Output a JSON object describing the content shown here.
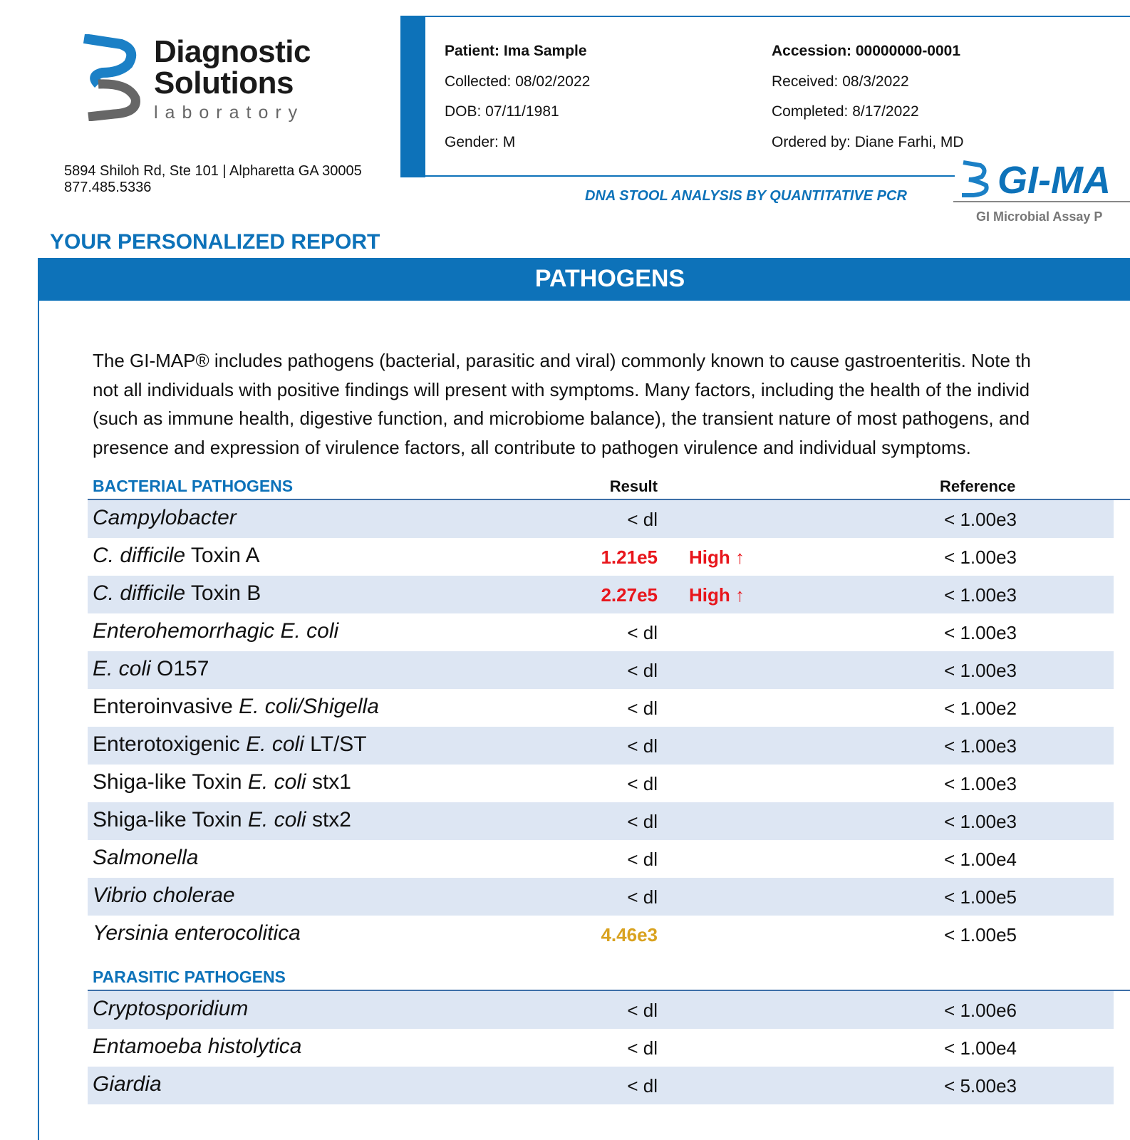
{
  "logo": {
    "line1": "Diagnostic",
    "line2": "Solutions",
    "line3": "laboratory"
  },
  "address": [
    "5894 Shiloh Rd, Ste 101 | Alpharetta GA 30005",
    "877.485.5336"
  ],
  "patient": {
    "left": [
      "Patient: Ima Sample",
      "Collected: 08/02/2022",
      "DOB: 07/11/1981",
      "Gender: M"
    ],
    "right": [
      "Accession: 00000000-0001",
      "Received: 08/3/2022",
      "Completed: 8/17/2022",
      "Ordered by: Diane Farhi, MD"
    ]
  },
  "subtitle": "DNA STOOL ANALYSIS BY QUANTITATIVE PCR",
  "brand": {
    "name": "GI-MA",
    "tagline": "GI Microbial Assay P"
  },
  "report_title": "YOUR PERSONALIZED REPORT",
  "section_title": "PATHOGENS",
  "intro": [
    "The GI-MAP® includes pathogens (bacterial, parasitic and viral) commonly known to cause gastroenteritis. Note th",
    "not all individuals with positive findings will present with symptoms. Many factors, including the health of the individ",
    "(such as immune health, digestive function, and microbiome balance), the transient nature of most pathogens, and",
    "presence and expression of virulence factors, all contribute to pathogen virulence and individual symptoms."
  ],
  "tables": [
    {
      "title": "BACTERIAL PATHOGENS",
      "result_header": "Result",
      "reference_header": "Reference",
      "rows": [
        {
          "name": [
            {
              "text": "Campylobacter",
              "italic": true
            }
          ],
          "result": "< dl",
          "reference": "< 1.00e3"
        },
        {
          "name": [
            {
              "text": "C. difficile",
              "italic": true
            },
            {
              "text": " Toxin A"
            }
          ],
          "result": "1.21e5",
          "result_color": "#e8161c",
          "flag": "High ↑",
          "reference": "< 1.00e3"
        },
        {
          "name": [
            {
              "text": "C. difficile",
              "italic": true
            },
            {
              "text": " Toxin B"
            }
          ],
          "result": "2.27e5",
          "result_color": "#e8161c",
          "flag": "High ↑",
          "reference": "< 1.00e3"
        },
        {
          "name": [
            {
              "text": "Enterohemorrhagic E. coli",
              "italic": true
            }
          ],
          "result": "< dl",
          "reference": "< 1.00e3"
        },
        {
          "name": [
            {
              "text": "E. coli",
              "italic": true
            },
            {
              "text": " O157"
            }
          ],
          "result": "< dl",
          "reference": "< 1.00e3"
        },
        {
          "name": [
            {
              "text": "Enteroinvasive "
            },
            {
              "text": "E. coli/Shigella",
              "italic": true
            }
          ],
          "result": "< dl",
          "reference": "< 1.00e2"
        },
        {
          "name": [
            {
              "text": "Enterotoxigenic "
            },
            {
              "text": "E. coli",
              "italic": true
            },
            {
              "text": " LT/ST"
            }
          ],
          "result": "< dl",
          "reference": "< 1.00e3"
        },
        {
          "name": [
            {
              "text": "Shiga-like Toxin "
            },
            {
              "text": "E. coli",
              "italic": true
            },
            {
              "text": " stx1"
            }
          ],
          "result": "< dl",
          "reference": "< 1.00e3"
        },
        {
          "name": [
            {
              "text": "Shiga-like Toxin "
            },
            {
              "text": "E. coli",
              "italic": true
            },
            {
              "text": " stx2"
            }
          ],
          "result": "< dl",
          "reference": "< 1.00e3"
        },
        {
          "name": [
            {
              "text": "Salmonella",
              "italic": true
            }
          ],
          "result": "< dl",
          "reference": "< 1.00e4"
        },
        {
          "name": [
            {
              "text": "Vibrio cholerae",
              "italic": true
            }
          ],
          "result": "< dl",
          "reference": "< 1.00e5"
        },
        {
          "name": [
            {
              "text": "Yersinia enterocolitica",
              "italic": true
            }
          ],
          "result": "4.46e3",
          "result_color": "#d9a21f",
          "reference": "< 1.00e5"
        }
      ]
    },
    {
      "title": "PARASITIC PATHOGENS",
      "rows": [
        {
          "name": [
            {
              "text": "Cryptosporidium",
              "italic": true
            }
          ],
          "result": "< dl",
          "reference": "< 1.00e6"
        },
        {
          "name": [
            {
              "text": "Entamoeba histolytica",
              "italic": true
            }
          ],
          "result": "< dl",
          "reference": "< 1.00e4"
        },
        {
          "name": [
            {
              "text": "Giardia",
              "italic": true
            }
          ],
          "result": "< dl",
          "reference": "< 5.00e3"
        }
      ]
    }
  ]
}
